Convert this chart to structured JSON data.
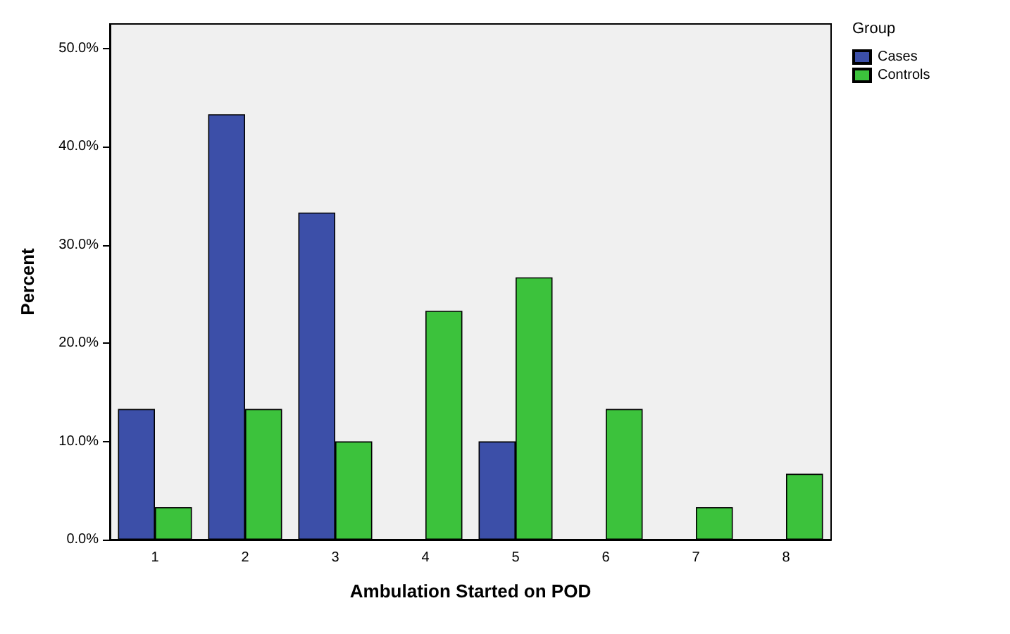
{
  "chart_data": {
    "type": "bar",
    "xlabel": "Ambulation Started on POD",
    "ylabel": "Percent",
    "legend_title": "Group",
    "legend": "top right",
    "grid": false,
    "categories": [
      "1",
      "2",
      "3",
      "4",
      "5",
      "6",
      "7",
      "8"
    ],
    "series": [
      {
        "name": "Cases",
        "color": "#3c4fa8",
        "values": [
          13.3,
          43.3,
          33.3,
          null,
          10.0,
          null,
          null,
          null
        ]
      },
      {
        "name": "Controls",
        "color": "#3cc23c",
        "values": [
          3.3,
          13.3,
          10.0,
          23.3,
          26.7,
          13.3,
          3.3,
          6.7
        ]
      }
    ],
    "ylim": [
      0,
      52.5
    ],
    "yticks": [
      {
        "value": 0,
        "label": "0.0%"
      },
      {
        "value": 10,
        "label": "10.0%"
      },
      {
        "value": 20,
        "label": "20.0%"
      },
      {
        "value": 30,
        "label": "30.0%"
      },
      {
        "value": 40,
        "label": "40.0%"
      },
      {
        "value": 50,
        "label": "50.0%"
      }
    ]
  }
}
